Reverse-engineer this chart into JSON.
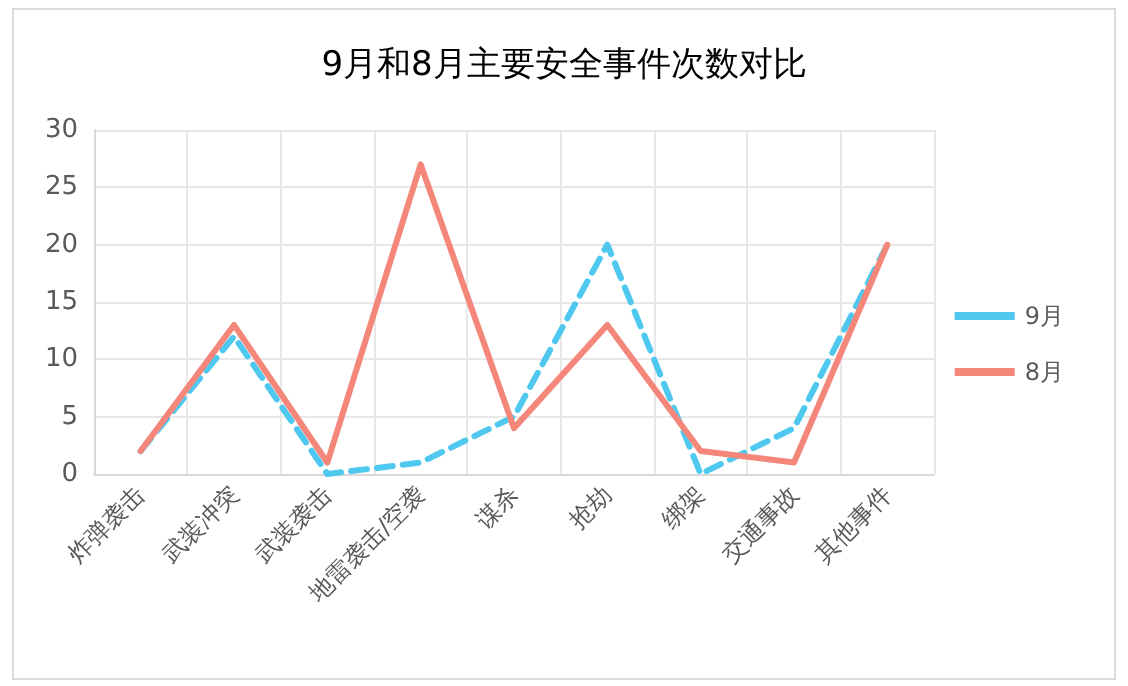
{
  "chart_data": {
    "type": "line",
    "title": "9月和8月主要安全事件次数对比",
    "categories": [
      "炸弹袭击",
      "武装冲突",
      "武装袭击",
      "地雷袭击/空袭",
      "谋杀",
      "抢劫",
      "绑架",
      "交通事故",
      "其他事件"
    ],
    "series": [
      {
        "name": "9月",
        "color": "#4fc8f0",
        "line_style": "dashed",
        "values": [
          2,
          12,
          0,
          1,
          5,
          20,
          0,
          4,
          20
        ]
      },
      {
        "name": "8月",
        "color": "#f4877a",
        "line_style": "solid",
        "values": [
          2,
          13,
          1,
          27,
          4,
          13,
          2,
          1,
          20
        ]
      }
    ],
    "ylim": [
      0,
      30
    ],
    "yticks": [
      0,
      5,
      10,
      15,
      20,
      25,
      30
    ],
    "grid": true,
    "legend": "right",
    "marker": "none"
  }
}
